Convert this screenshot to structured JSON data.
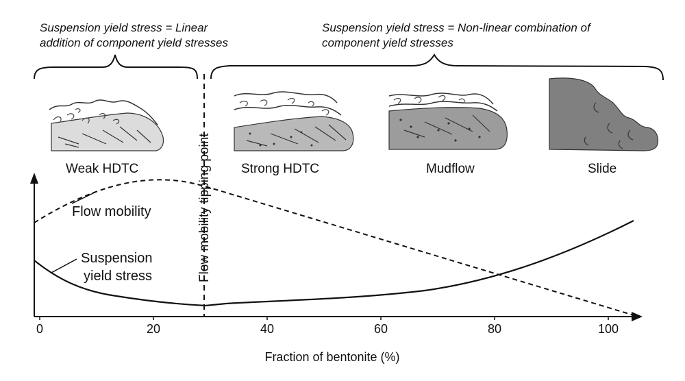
{
  "annotations": {
    "left_note": [
      "Suspension yield stress = Linear",
      "addition of component yield stresses"
    ],
    "right_note": [
      "Suspension yield stress = Non-linear combination of",
      "component yield stresses"
    ]
  },
  "stages": [
    {
      "label": "Weak HDTC"
    },
    {
      "label": "Strong HDTC"
    },
    {
      "label": "Mudflow"
    },
    {
      "label": "Slide"
    }
  ],
  "tipping_point": {
    "label": "Flow mobility tipping point",
    "x_value": 29
  },
  "curves": {
    "flow_mobility": "Flow mobility",
    "yield_stress": [
      "Suspension",
      "yield stress"
    ]
  },
  "axis": {
    "xlabel": "Fraction of bentonite (%)",
    "ticks": [
      "0",
      "20",
      "40",
      "60",
      "80",
      "100"
    ]
  },
  "colors": {
    "light_grey": "#dcdcdc",
    "mid_grey": "#b9b9b9",
    "dark_grey": "#9c9c9c",
    "slide_grey": "#808080",
    "line": "#111111"
  }
}
